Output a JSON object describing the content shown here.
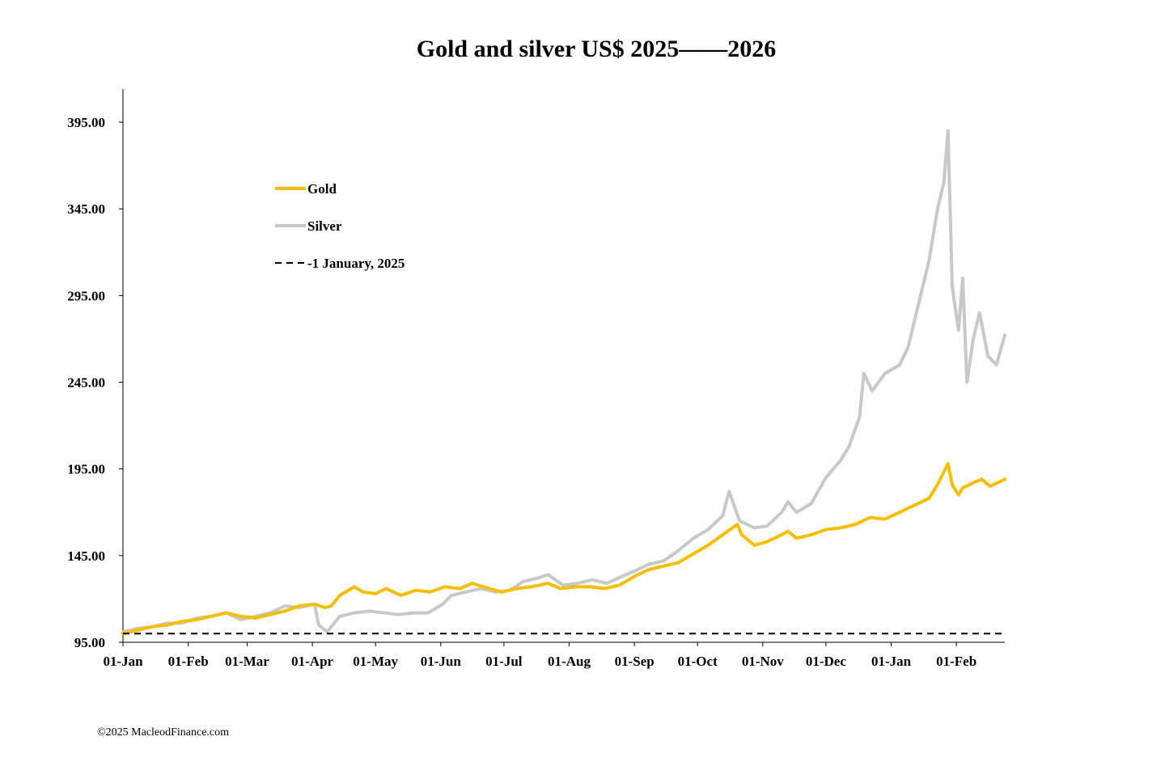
{
  "copyright": "©2025 MacleodFinance.com",
  "chart_data": {
    "type": "line",
    "title": "Gold and silver  US$ 2025——2026",
    "xlabel": "",
    "ylabel": "",
    "ylim": [
      95,
      415
    ],
    "y_ticks": [
      95,
      145,
      195,
      245,
      295,
      345,
      395
    ],
    "y_tick_labels": [
      "95.00",
      "145.00",
      "195.00",
      "245.00",
      "295.00",
      "345.00",
      "395.00"
    ],
    "x_range": [
      "2025-01-01",
      "2026-02-24"
    ],
    "x_ticks": [
      {
        "date": "2025-01-01",
        "label": "01-Jan"
      },
      {
        "date": "2025-02-01",
        "label": "01-Feb"
      },
      {
        "date": "2025-03-01",
        "label": "01-Mar"
      },
      {
        "date": "2025-04-01",
        "label": "01-Apr"
      },
      {
        "date": "2025-05-01",
        "label": "01-May"
      },
      {
        "date": "2025-06-01",
        "label": "01-Jun"
      },
      {
        "date": "2025-07-01",
        "label": "01-Jul"
      },
      {
        "date": "2025-08-01",
        "label": "01-Aug"
      },
      {
        "date": "2025-09-01",
        "label": "01-Sep"
      },
      {
        "date": "2025-10-01",
        "label": "01-Oct"
      },
      {
        "date": "2025-11-01",
        "label": "01-Nov"
      },
      {
        "date": "2025-12-01",
        "label": "01-Dec"
      },
      {
        "date": "2026-01-01",
        "label": "01-Jan"
      },
      {
        "date": "2026-02-01",
        "label": "01-Feb"
      }
    ],
    "grid": false,
    "legend_position": "upper-left",
    "series": [
      {
        "name": "Gold",
        "color": "#F5BE00",
        "style": "solid",
        "points": [
          [
            "2025-01-01",
            100
          ],
          [
            "2025-01-08",
            102
          ],
          [
            "2025-01-15",
            104
          ],
          [
            "2025-01-22",
            105
          ],
          [
            "2025-01-29",
            107
          ],
          [
            "2025-02-05",
            108
          ],
          [
            "2025-02-12",
            110
          ],
          [
            "2025-02-19",
            112
          ],
          [
            "2025-02-26",
            110
          ],
          [
            "2025-03-05",
            109
          ],
          [
            "2025-03-12",
            111
          ],
          [
            "2025-03-19",
            113
          ],
          [
            "2025-03-26",
            116
          ],
          [
            "2025-04-02",
            117
          ],
          [
            "2025-04-07",
            115
          ],
          [
            "2025-04-10",
            116
          ],
          [
            "2025-04-14",
            122
          ],
          [
            "2025-04-21",
            127
          ],
          [
            "2025-04-25",
            124
          ],
          [
            "2025-05-01",
            123
          ],
          [
            "2025-05-06",
            126
          ],
          [
            "2025-05-13",
            122
          ],
          [
            "2025-05-20",
            125
          ],
          [
            "2025-05-27",
            124
          ],
          [
            "2025-06-03",
            127
          ],
          [
            "2025-06-10",
            126
          ],
          [
            "2025-06-16",
            129
          ],
          [
            "2025-06-24",
            126
          ],
          [
            "2025-06-30",
            124
          ],
          [
            "2025-07-07",
            126
          ],
          [
            "2025-07-14,",
            127
          ],
          [
            "2025-07-22",
            129
          ],
          [
            "2025-07-28",
            126
          ],
          [
            "2025-08-04",
            127
          ],
          [
            "2025-08-11",
            127
          ],
          [
            "2025-08-18",
            126
          ],
          [
            "2025-08-25",
            128
          ],
          [
            "2025-09-01",
            133
          ],
          [
            "2025-09-08",
            137
          ],
          [
            "2025-09-15",
            139
          ],
          [
            "2025-09-22",
            141
          ],
          [
            "2025-09-29",
            146
          ],
          [
            "2025-10-06",
            151
          ],
          [
            "2025-10-13",
            157
          ],
          [
            "2025-10-20",
            163
          ],
          [
            "2025-10-22",
            157
          ],
          [
            "2025-10-28",
            151
          ],
          [
            "2025-11-03",
            153
          ],
          [
            "2025-11-10",
            157
          ],
          [
            "2025-11-13",
            159
          ],
          [
            "2025-11-17",
            155
          ],
          [
            "2025-11-24",
            157
          ],
          [
            "2025-12-01",
            160
          ],
          [
            "2025-12-08",
            161
          ],
          [
            "2025-12-15",
            163
          ],
          [
            "2025-12-22",
            167
          ],
          [
            "2025-12-29",
            166
          ],
          [
            "2026-01-05",
            170
          ],
          [
            "2026-01-12",
            174
          ],
          [
            "2026-01-19",
            178
          ],
          [
            "2026-01-23",
            186
          ],
          [
            "2026-01-28",
            198
          ],
          [
            "2026-01-30",
            186
          ],
          [
            "2026-02-02",
            180
          ],
          [
            "2026-02-04",
            184
          ],
          [
            "2026-02-09",
            187
          ],
          [
            "2026-02-13",
            189
          ],
          [
            "2026-02-17",
            185
          ],
          [
            "2026-02-24",
            189
          ]
        ]
      },
      {
        "name": "Silver",
        "color": "#C8C8C8",
        "style": "solid",
        "points": [
          [
            "2025-01-01",
            101
          ],
          [
            "2025-01-08",
            103
          ],
          [
            "2025-01-15",
            104
          ],
          [
            "2025-01-22",
            106
          ],
          [
            "2025-01-29",
            106
          ],
          [
            "2025-02-05",
            109
          ],
          [
            "2025-02-12",
            110
          ],
          [
            "2025-02-19",
            112
          ],
          [
            "2025-02-26",
            108
          ],
          [
            "2025-03-05",
            110
          ],
          [
            "2025-03-12",
            112
          ],
          [
            "2025-03-19",
            116
          ],
          [
            "2025-03-26",
            115
          ],
          [
            "2025-04-02",
            117
          ],
          [
            "2025-04-04",
            105
          ],
          [
            "2025-04-08",
            101
          ],
          [
            "2025-04-14",
            110
          ],
          [
            "2025-04-21",
            112
          ],
          [
            "2025-04-28",
            113
          ],
          [
            "2025-05-05",
            112
          ],
          [
            "2025-05-12",
            111
          ],
          [
            "2025-05-19",
            112
          ],
          [
            "2025-05-26",
            112
          ],
          [
            "2025-06-02",
            117
          ],
          [
            "2025-06-06",
            122
          ],
          [
            "2025-06-13",
            124
          ],
          [
            "2025-06-20",
            126
          ],
          [
            "2025-06-27",
            124
          ],
          [
            "2025-07-04",
            125
          ],
          [
            "2025-07-10",
            130
          ],
          [
            "2025-07-17",
            132
          ],
          [
            "2025-07-22",
            134
          ],
          [
            "2025-07-29",
            128
          ],
          [
            "2025-08-05",
            129
          ],
          [
            "2025-08-12",
            131
          ],
          [
            "2025-08-19",
            129
          ],
          [
            "2025-08-26",
            133
          ],
          [
            "2025-09-01",
            136
          ],
          [
            "2025-09-08",
            140
          ],
          [
            "2025-09-15",
            142
          ],
          [
            "2025-09-22",
            148
          ],
          [
            "2025-09-29",
            155
          ],
          [
            "2025-10-06",
            160
          ],
          [
            "2025-10-13",
            168
          ],
          [
            "2025-10-16",
            182
          ],
          [
            "2025-10-21",
            165
          ],
          [
            "2025-10-28",
            161
          ],
          [
            "2025-11-03",
            162
          ],
          [
            "2025-11-10",
            170
          ],
          [
            "2025-11-13",
            176
          ],
          [
            "2025-11-17",
            170
          ],
          [
            "2025-11-24",
            175
          ],
          [
            "2025-12-01",
            190
          ],
          [
            "2025-12-08",
            200
          ],
          [
            "2025-12-12",
            208
          ],
          [
            "2025-12-17",
            225
          ],
          [
            "2025-12-19",
            250
          ],
          [
            "2025-12-23",
            240
          ],
          [
            "2025-12-29",
            250
          ],
          [
            "2026-01-05",
            255
          ],
          [
            "2026-01-09",
            265
          ],
          [
            "2026-01-14",
            290
          ],
          [
            "2026-01-19",
            315
          ],
          [
            "2026-01-23",
            345
          ],
          [
            "2026-01-26",
            360
          ],
          [
            "2026-01-28",
            390
          ],
          [
            "2026-01-30",
            300
          ],
          [
            "2026-02-02",
            275
          ],
          [
            "2026-02-04",
            305
          ],
          [
            "2026-02-06",
            245
          ],
          [
            "2026-02-09",
            270
          ],
          [
            "2026-02-12",
            285
          ],
          [
            "2026-02-16",
            260
          ],
          [
            "2026-02-20",
            255
          ],
          [
            "2026-02-24",
            272
          ]
        ]
      },
      {
        "name": "1 January, 2025",
        "color": "#000000",
        "style": "dashed",
        "constant": 100
      }
    ]
  }
}
